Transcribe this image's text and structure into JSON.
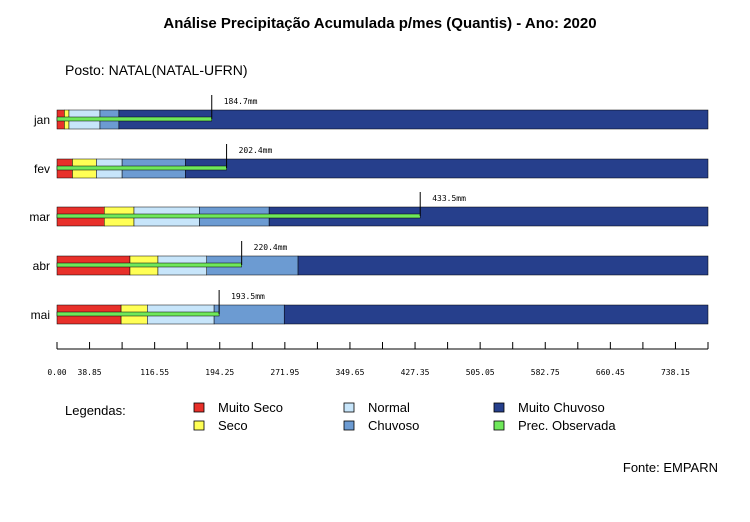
{
  "chart_data": {
    "type": "bar",
    "title": "Análise Precipitação Acumulada p/mes (Quantis) - Ano: 2020",
    "subtitle": "Posto: NATAL(NATAL-UFRN)",
    "source": "Fonte: EMPARN",
    "categories": [
      "jan",
      "fev",
      "mar",
      "abr",
      "mai"
    ],
    "series": [
      {
        "name": "Muito Seco",
        "color": "#e8302a",
        "values": [
          8.8,
          18.4,
          56.4,
          87.1,
          76.5
        ]
      },
      {
        "name": "Seco",
        "color": "#ffff55",
        "values": [
          14.3,
          47.0,
          91.9,
          120.5,
          107.8
        ]
      },
      {
        "name": "Normal",
        "color": "#c7e5fa",
        "values": [
          51.3,
          77.7,
          170.0,
          178.7,
          187.5
        ]
      },
      {
        "name": "Chuvoso",
        "color": "#6c9bd2",
        "values": [
          73.9,
          153.3,
          253.2,
          287.7,
          271.2
        ]
      },
      {
        "name": "Muito Chuvoso",
        "color": "#263f8c",
        "values": [
          777.0,
          777.0,
          777.0,
          777.0,
          777.0
        ]
      }
    ],
    "observed": {
      "name": "Prec. Observada",
      "color": "#6fe85a",
      "values": [
        184.7,
        202.4,
        433.5,
        220.4,
        193.5
      ],
      "labels": [
        "184.7mm",
        "202.4mm",
        "433.5mm",
        "220.4mm",
        "193.5mm"
      ]
    },
    "x_ticks": [
      "0.00",
      "38.85",
      "116.55",
      "194.25",
      "271.95",
      "349.65",
      "427.35",
      "505.05",
      "582.75",
      "660.45",
      "738.15"
    ],
    "x_tick_values": [
      0,
      38.85,
      116.55,
      194.25,
      271.95,
      349.65,
      427.35,
      505.05,
      582.75,
      660.45,
      738.15
    ],
    "xlim": [
      0,
      777
    ],
    "minor_step": 38.85,
    "legend_title": "Legendas:",
    "legend": [
      "Muito Seco",
      "Seco",
      "Normal",
      "Chuvoso",
      "Muito Chuvoso",
      "Prec. Observada"
    ],
    "legend_colors": [
      "#e8302a",
      "#ffff55",
      "#c7e5fa",
      "#6c9bd2",
      "#263f8c",
      "#6fe85a"
    ],
    "grid": false
  }
}
